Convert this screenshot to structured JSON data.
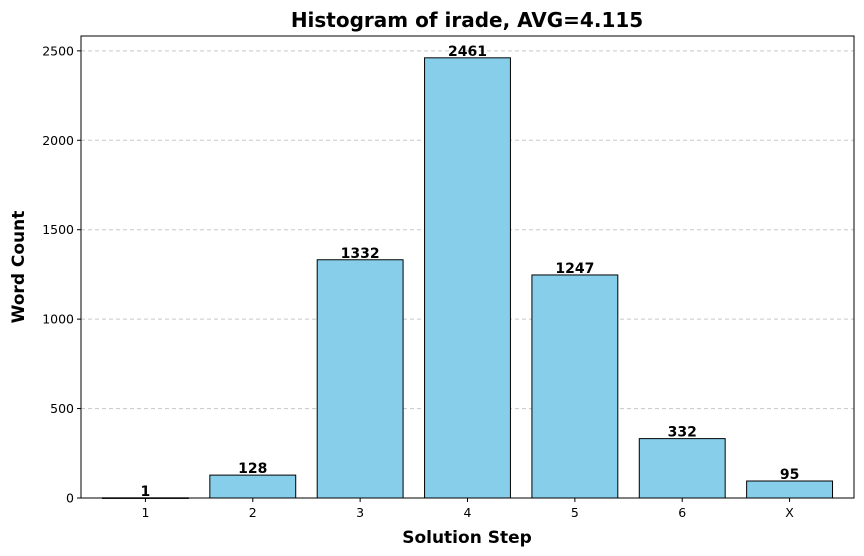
{
  "chart_data": {
    "type": "bar",
    "title": "Histogram of irade, AVG=4.115",
    "xlabel": "Solution Step",
    "ylabel": "Word Count",
    "categories": [
      "1",
      "2",
      "3",
      "4",
      "5",
      "6",
      "X"
    ],
    "values": [
      1,
      128,
      1332,
      2461,
      1247,
      332,
      95
    ],
    "ylim": [
      0,
      2583
    ],
    "yticks": [
      0,
      500,
      1000,
      1500,
      2000,
      2500
    ],
    "grid": "y-dashed",
    "bar_color": "#87CEEB",
    "edge_color": "#000000",
    "grid_color": "#c8c8c8",
    "data_labels": [
      "1",
      "128",
      "1332",
      "2461",
      "1247",
      "332",
      "95"
    ]
  }
}
